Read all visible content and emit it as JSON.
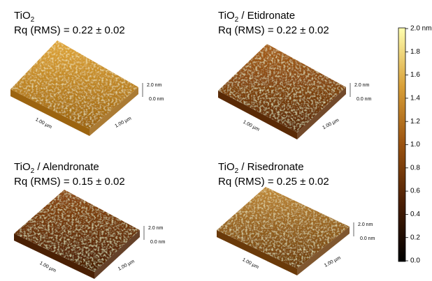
{
  "panels": [
    {
      "title": {
        "base": "TiO",
        "sub": "2"
      },
      "rq": "Rq (RMS) = 0.22 ± 0.02",
      "z_top": "2.0 nm",
      "z_bottom": "0.0 nm",
      "x_axis": "1.00 µm",
      "y_axis": "1.00 µm"
    },
    {
      "title": {
        "base": "TiO",
        "sub": "2",
        "rest": " / Etidronate"
      },
      "rq": "Rq (RMS) = 0.22 ± 0.02",
      "z_top": "2.0 nm",
      "z_bottom": "0.0 nm",
      "x_axis": "1.00 µm",
      "y_axis": "1.00 µm"
    },
    {
      "title": {
        "base": "TiO",
        "sub": "2",
        "rest": " / Alendronate"
      },
      "rq": "Rq (RMS) = 0.15 ± 0.02",
      "z_top": "2.0 nm",
      "z_bottom": "0.0 nm",
      "x_axis": "1.00 µm",
      "y_axis": "1.00 µm"
    },
    {
      "title": {
        "base": "TiO",
        "sub": "2",
        "rest": " / Risedronate"
      },
      "rq": "Rq (RMS) = 0.25 ± 0.02",
      "z_top": "2.0 nm",
      "z_bottom": "0.0 nm",
      "x_axis": "1.00 µm",
      "y_axis": "1.00 µm"
    }
  ],
  "colorbar": {
    "ticks": [
      "2.0 nm",
      "1.8",
      "1.6",
      "1.4",
      "1.2",
      "1.0",
      "0.8",
      "0.6",
      "0.4",
      "0.2",
      "0.0"
    ]
  }
}
